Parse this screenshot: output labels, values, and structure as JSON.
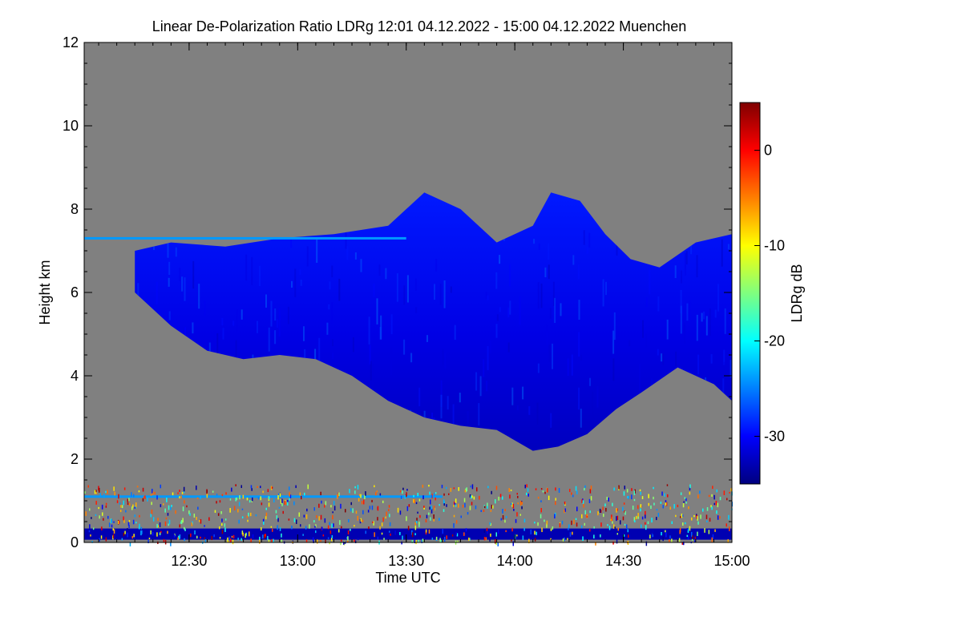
{
  "chart_data": {
    "type": "heatmap",
    "title": "Linear De-Polarization Ratio LDRg   12:01 04.12.2022 - 15:00 04.12.2022 Muenchen",
    "xlabel": "Time UTC",
    "ylabel": "Height km",
    "x_ticks": [
      "12:30",
      "13:00",
      "13:30",
      "14:00",
      "14:30",
      "15:00"
    ],
    "x_tick_minutes": [
      750,
      780,
      810,
      840,
      870,
      900
    ],
    "xlim_minutes": [
      721,
      900
    ],
    "ylim": [
      0,
      12
    ],
    "y_ticks": [
      0,
      2,
      4,
      6,
      8,
      10,
      12
    ],
    "colorbar": {
      "label": "LDRg dB",
      "range": [
        -35,
        5
      ],
      "ticks": [
        0,
        -10,
        -20,
        -30
      ]
    },
    "background_color": "#808080",
    "colormap": [
      "#00007f",
      "#0000ff",
      "#007fff",
      "#00ffff",
      "#7fff7f",
      "#ffff00",
      "#ff7f00",
      "#ff0000",
      "#7f0000"
    ],
    "cloud": {
      "description_free": true,
      "top_km": [
        [
          735,
          7.0
        ],
        [
          745,
          7.2
        ],
        [
          760,
          7.1
        ],
        [
          775,
          7.3
        ],
        [
          790,
          7.4
        ],
        [
          805,
          7.6
        ],
        [
          815,
          8.4
        ],
        [
          825,
          8.0
        ],
        [
          835,
          7.2
        ],
        [
          845,
          7.6
        ],
        [
          850,
          8.4
        ],
        [
          858,
          8.2
        ],
        [
          865,
          7.4
        ],
        [
          872,
          6.8
        ],
        [
          880,
          6.6
        ],
        [
          890,
          7.2
        ],
        [
          900,
          7.4
        ]
      ],
      "base_km": [
        [
          735,
          6.0
        ],
        [
          745,
          5.2
        ],
        [
          755,
          4.6
        ],
        [
          765,
          4.4
        ],
        [
          775,
          4.5
        ],
        [
          785,
          4.4
        ],
        [
          795,
          4.0
        ],
        [
          805,
          3.4
        ],
        [
          815,
          3.0
        ],
        [
          825,
          2.8
        ],
        [
          835,
          2.7
        ],
        [
          845,
          2.2
        ],
        [
          852,
          2.3
        ],
        [
          860,
          2.6
        ],
        [
          868,
          3.2
        ],
        [
          875,
          3.6
        ],
        [
          885,
          4.2
        ],
        [
          895,
          3.8
        ],
        [
          900,
          3.4
        ]
      ]
    },
    "layers": [
      {
        "height_km": 7.3,
        "from": 721,
        "to": 810
      },
      {
        "height_km": 1.1,
        "from": 721,
        "to": 820
      },
      {
        "height_km": 0.2,
        "from": 721,
        "to": 900
      }
    ]
  }
}
